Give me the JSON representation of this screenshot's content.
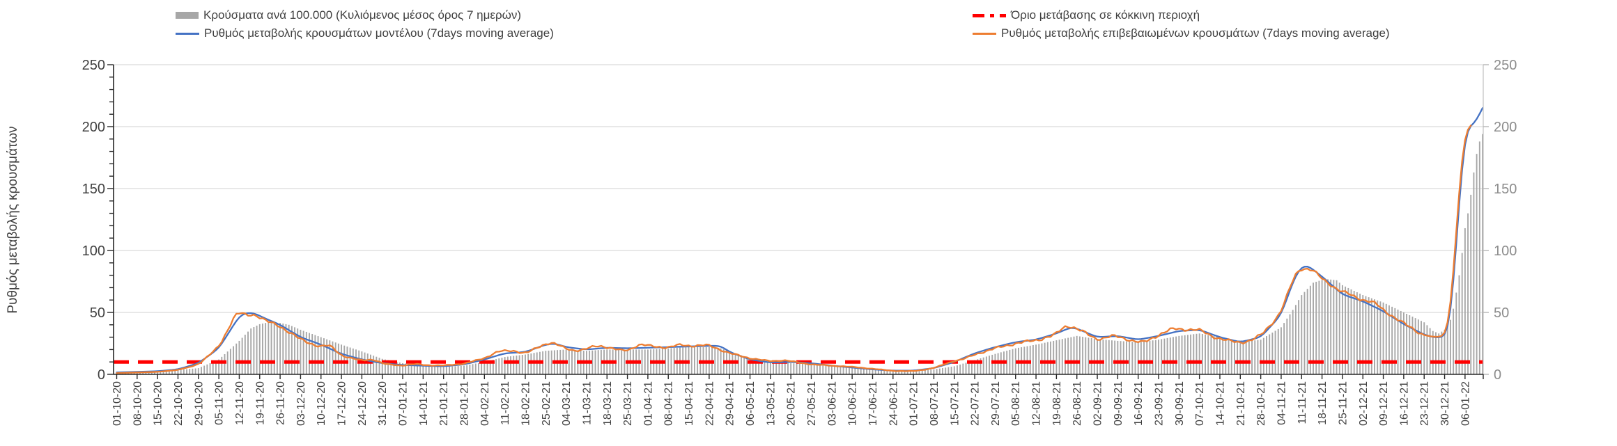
{
  "page": {
    "background": "#ffffff"
  },
  "chart_data": {
    "type": "composite",
    "title": "",
    "ylabel": "Ρυθμός μεταβολής κρουσμάτων",
    "y_axis": {
      "min": 0,
      "max": 250,
      "major_ticks": [
        0,
        50,
        100,
        150,
        200,
        250
      ],
      "minor_step": 10,
      "grid": true,
      "grid_color": "#d9d9d9"
    },
    "x_tick_interval_days": 7,
    "x_total_days": 468,
    "x_tick_labels": [
      "01-10-20",
      "08-10-20",
      "15-10-20",
      "22-10-20",
      "29-10-20",
      "05-11-20",
      "12-11-20",
      "19-11-20",
      "26-11-20",
      "03-12-20",
      "10-12-20",
      "17-12-20",
      "24-12-20",
      "31-12-20",
      "07-01-21",
      "14-01-21",
      "21-01-21",
      "28-01-21",
      "04-02-21",
      "11-02-21",
      "18-02-21",
      "25-02-21",
      "04-03-21",
      "11-03-21",
      "18-03-21",
      "25-03-21",
      "01-04-21",
      "08-04-21",
      "15-04-21",
      "22-04-21",
      "29-04-21",
      "06-05-21",
      "13-05-21",
      "20-05-21",
      "27-05-21",
      "03-06-21",
      "10-06-21",
      "17-06-21",
      "24-06-21",
      "01-07-21",
      "08-07-21",
      "15-07-21",
      "22-07-21",
      "29-07-21",
      "05-08-21",
      "12-08-21",
      "19-08-21",
      "26-08-21",
      "02-09-21",
      "09-09-21",
      "16-09-21",
      "23-09-21",
      "30-09-21",
      "07-10-21",
      "14-10-21",
      "21-10-21",
      "28-10-21",
      "04-11-21",
      "11-11-21",
      "18-11-21",
      "25-11-21",
      "02-12-21",
      "09-12-21",
      "16-12-21",
      "23-12-21",
      "30-12-21",
      "06-01-22"
    ],
    "threshold": {
      "label": "Όριο μετάβασης σε κόκκινη περιοχή",
      "value": 10,
      "color": "#ff0000",
      "style": "dashed"
    },
    "series": [
      {
        "id": "bars",
        "name": "Κρούσματα ανά 100.000 (Κυλιόμενος μέσος όρος 7 ημερών)",
        "type": "bar",
        "color": "#a7a7a7",
        "anchors": [
          [
            0,
            1.5
          ],
          [
            7,
            2
          ],
          [
            14,
            2.5
          ],
          [
            21,
            3.5
          ],
          [
            28,
            5
          ],
          [
            35,
            12
          ],
          [
            42,
            27
          ],
          [
            46,
            37
          ],
          [
            49,
            40.5
          ],
          [
            52,
            42
          ],
          [
            56,
            41.5
          ],
          [
            59,
            40
          ],
          [
            63,
            36
          ],
          [
            70,
            30
          ],
          [
            77,
            24
          ],
          [
            84,
            18.5
          ],
          [
            91,
            12.5
          ],
          [
            98,
            9
          ],
          [
            105,
            7
          ],
          [
            112,
            6
          ],
          [
            119,
            7
          ],
          [
            126,
            10
          ],
          [
            133,
            14
          ],
          [
            140,
            16
          ],
          [
            147,
            19
          ],
          [
            154,
            20
          ],
          [
            161,
            19
          ],
          [
            168,
            20
          ],
          [
            175,
            20
          ],
          [
            182,
            20
          ],
          [
            189,
            21
          ],
          [
            196,
            22
          ],
          [
            203,
            22
          ],
          [
            207,
            21
          ],
          [
            210,
            18.5
          ],
          [
            217,
            13
          ],
          [
            224,
            10
          ],
          [
            231,
            9
          ],
          [
            238,
            8
          ],
          [
            245,
            6.5
          ],
          [
            252,
            5.5
          ],
          [
            259,
            4.5
          ],
          [
            266,
            3.5
          ],
          [
            273,
            3
          ],
          [
            280,
            4
          ],
          [
            287,
            6.5
          ],
          [
            294,
            11.5
          ],
          [
            301,
            16.5
          ],
          [
            308,
            21
          ],
          [
            315,
            24
          ],
          [
            322,
            27.5
          ],
          [
            329,
            31
          ],
          [
            336,
            28.5
          ],
          [
            343,
            27
          ],
          [
            350,
            26
          ],
          [
            357,
            28
          ],
          [
            364,
            31
          ],
          [
            371,
            33
          ],
          [
            378,
            30
          ],
          [
            385,
            26
          ],
          [
            392,
            28
          ],
          [
            399,
            38
          ],
          [
            403,
            52
          ],
          [
            406,
            64
          ],
          [
            410,
            74
          ],
          [
            414,
            77
          ],
          [
            418,
            76
          ],
          [
            420,
            72
          ],
          [
            427,
            64
          ],
          [
            434,
            58
          ],
          [
            441,
            50
          ],
          [
            448,
            42
          ],
          [
            451,
            35
          ],
          [
            453,
            33
          ],
          [
            455,
            36
          ],
          [
            457,
            44
          ],
          [
            458,
            53
          ],
          [
            459,
            66
          ],
          [
            460,
            80
          ],
          [
            461,
            98
          ],
          [
            462,
            118
          ],
          [
            463,
            130
          ],
          [
            464,
            145
          ],
          [
            465,
            163
          ],
          [
            466,
            178
          ],
          [
            467,
            188
          ],
          [
            468,
            194
          ]
        ]
      },
      {
        "id": "model",
        "name": "Ρυθμός μεταβολής κρουσμάτων μοντέλου (7days moving average)",
        "type": "line",
        "color": "#4472c4",
        "anchors": [
          [
            0,
            1.5
          ],
          [
            7,
            2
          ],
          [
            14,
            2.5
          ],
          [
            21,
            4
          ],
          [
            28,
            9
          ],
          [
            35,
            21
          ],
          [
            42,
            47
          ],
          [
            44,
            49.5
          ],
          [
            47,
            49.5
          ],
          [
            51,
            45
          ],
          [
            56,
            40
          ],
          [
            63,
            30
          ],
          [
            70,
            24
          ],
          [
            77,
            16.5
          ],
          [
            84,
            12
          ],
          [
            91,
            9
          ],
          [
            98,
            7.5
          ],
          [
            105,
            7
          ],
          [
            112,
            6.5
          ],
          [
            119,
            8
          ],
          [
            126,
            12
          ],
          [
            133,
            17
          ],
          [
            140,
            18
          ],
          [
            147,
            24
          ],
          [
            150,
            25
          ],
          [
            154,
            22
          ],
          [
            161,
            20
          ],
          [
            168,
            21.5
          ],
          [
            175,
            21
          ],
          [
            182,
            21.5
          ],
          [
            189,
            22
          ],
          [
            196,
            22.5
          ],
          [
            203,
            23
          ],
          [
            207,
            23
          ],
          [
            210,
            18
          ],
          [
            217,
            12
          ],
          [
            224,
            9.5
          ],
          [
            231,
            10
          ],
          [
            238,
            9
          ],
          [
            245,
            7
          ],
          [
            252,
            5.5
          ],
          [
            259,
            4
          ],
          [
            266,
            3
          ],
          [
            273,
            3
          ],
          [
            280,
            5
          ],
          [
            287,
            10
          ],
          [
            294,
            17
          ],
          [
            301,
            22
          ],
          [
            308,
            26
          ],
          [
            315,
            28
          ],
          [
            322,
            33
          ],
          [
            327,
            38
          ],
          [
            329,
            37
          ],
          [
            336,
            30
          ],
          [
            343,
            31
          ],
          [
            350,
            28
          ],
          [
            357,
            31
          ],
          [
            364,
            35
          ],
          [
            371,
            36
          ],
          [
            378,
            30
          ],
          [
            385,
            26
          ],
          [
            392,
            30
          ],
          [
            399,
            48
          ],
          [
            402,
            68
          ],
          [
            404,
            80
          ],
          [
            406,
            87
          ],
          [
            408,
            88
          ],
          [
            413,
            79
          ],
          [
            420,
            64.5
          ],
          [
            427,
            59
          ],
          [
            434,
            51
          ],
          [
            441,
            40.5
          ],
          [
            448,
            32
          ],
          [
            452,
            29.5
          ],
          [
            455,
            30.5
          ],
          [
            456,
            33
          ],
          [
            457,
            45
          ],
          [
            458,
            70
          ],
          [
            459,
            105
          ],
          [
            460,
            140
          ],
          [
            461,
            170
          ],
          [
            462,
            196
          ],
          [
            463,
            199
          ],
          [
            464,
            200.5
          ],
          [
            465,
            202
          ],
          [
            466,
            205.5
          ],
          [
            467,
            210
          ],
          [
            468,
            215
          ]
        ]
      },
      {
        "id": "confirmed",
        "name": "Ρυθμός μεταβολής επιβεβαιωμένων κρουσμάτων (7days moving average)",
        "type": "line",
        "color": "#ed7d31",
        "anchors": [
          [
            0,
            1
          ],
          [
            7,
            1.5
          ],
          [
            14,
            2
          ],
          [
            21,
            3.5
          ],
          [
            28,
            8
          ],
          [
            35,
            22
          ],
          [
            41,
            50
          ],
          [
            42,
            51
          ],
          [
            44,
            46.5
          ],
          [
            46,
            49
          ],
          [
            48,
            48
          ],
          [
            51,
            43
          ],
          [
            56,
            39
          ],
          [
            63,
            28
          ],
          [
            70,
            22
          ],
          [
            73,
            24
          ],
          [
            77,
            15
          ],
          [
            84,
            11
          ],
          [
            88,
            12.5
          ],
          [
            91,
            8.5
          ],
          [
            98,
            7
          ],
          [
            103,
            8.5
          ],
          [
            105,
            7.5
          ],
          [
            112,
            7
          ],
          [
            116,
            8
          ],
          [
            119,
            8.5
          ],
          [
            126,
            13
          ],
          [
            131,
            19
          ],
          [
            133,
            18.5
          ],
          [
            136,
            19.5
          ],
          [
            140,
            16.5
          ],
          [
            147,
            25
          ],
          [
            149,
            26
          ],
          [
            154,
            20.5
          ],
          [
            158,
            19
          ],
          [
            161,
            20.5
          ],
          [
            165,
            23.5
          ],
          [
            168,
            22
          ],
          [
            172,
            19.5
          ],
          [
            175,
            19
          ],
          [
            179,
            24.5
          ],
          [
            182,
            23
          ],
          [
            189,
            21.5
          ],
          [
            193,
            24
          ],
          [
            196,
            23
          ],
          [
            203,
            23.5
          ],
          [
            210,
            17
          ],
          [
            217,
            13
          ],
          [
            224,
            10.5
          ],
          [
            229,
            11.5
          ],
          [
            231,
            10.5
          ],
          [
            238,
            8
          ],
          [
            245,
            7
          ],
          [
            252,
            6
          ],
          [
            259,
            4.5
          ],
          [
            266,
            2.8
          ],
          [
            273,
            2.5
          ],
          [
            280,
            5
          ],
          [
            287,
            11
          ],
          [
            290,
            12
          ],
          [
            294,
            16
          ],
          [
            301,
            21
          ],
          [
            308,
            25
          ],
          [
            315,
            27.5
          ],
          [
            322,
            32
          ],
          [
            325,
            40
          ],
          [
            328,
            38
          ],
          [
            331,
            34.5
          ],
          [
            336,
            28
          ],
          [
            341,
            31
          ],
          [
            343,
            30.5
          ],
          [
            350,
            26
          ],
          [
            352,
            25.5
          ],
          [
            357,
            32
          ],
          [
            362,
            37
          ],
          [
            364,
            36.5
          ],
          [
            371,
            36
          ],
          [
            375,
            31
          ],
          [
            378,
            29
          ],
          [
            381,
            27
          ],
          [
            385,
            25.5
          ],
          [
            388,
            27
          ],
          [
            392,
            31
          ],
          [
            399,
            50
          ],
          [
            402,
            70
          ],
          [
            404,
            82
          ],
          [
            406,
            87.5
          ],
          [
            407,
            84
          ],
          [
            409,
            86
          ],
          [
            413,
            77
          ],
          [
            417,
            71
          ],
          [
            419,
            67
          ],
          [
            421,
            66
          ],
          [
            427,
            60
          ],
          [
            431,
            58
          ],
          [
            434,
            52
          ],
          [
            441,
            41
          ],
          [
            448,
            31.5
          ],
          [
            452,
            30
          ],
          [
            455,
            31
          ],
          [
            456,
            35
          ],
          [
            457,
            50
          ],
          [
            458,
            80
          ],
          [
            459,
            115
          ],
          [
            460,
            150
          ],
          [
            461,
            180
          ],
          [
            462,
            197
          ],
          [
            463,
            200
          ],
          [
            464,
            201
          ]
        ]
      }
    ],
    "legend_position": "top"
  }
}
